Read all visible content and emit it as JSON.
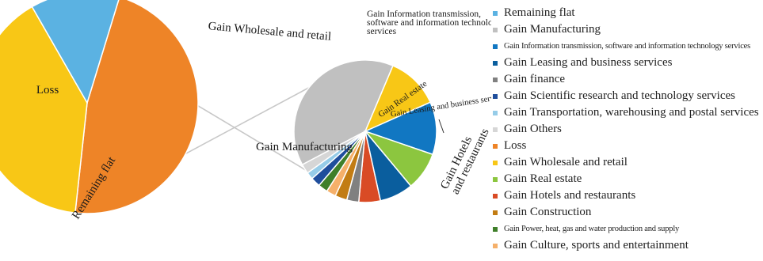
{
  "chart_data": {
    "type": "pie",
    "subtype": "pie-of-pie",
    "main_pie": {
      "slices": [
        {
          "key": "loss",
          "label": "Loss",
          "value": 47,
          "color": "#ee8427"
        },
        {
          "key": "wholesale",
          "label": "Gain  Wholesale and retail",
          "value": 40,
          "color": "#f8c716"
        },
        {
          "key": "remaining",
          "label": "Remaining flat",
          "value": 13,
          "color": "#5bb2e2"
        }
      ]
    },
    "secondary_pie": {
      "slices": [
        {
          "key": "manufacturing",
          "label": "Gain  Manufacturing",
          "value": 36.0,
          "color": "#c0c0c0"
        },
        {
          "key": "wholesale2",
          "label": "",
          "value": 11.0,
          "color": "#f8c716"
        },
        {
          "key": "infotech",
          "label": "Gain  Information transmission, software and information technology services",
          "value": 11.0,
          "color": "#1177c2"
        },
        {
          "key": "realestate",
          "label": "Gain  Real estate",
          "value": 8.0,
          "color": "#8cc63f"
        },
        {
          "key": "leasing",
          "label": "Gain  Leasing and business services",
          "value": 7.0,
          "color": "#0a5e9e"
        },
        {
          "key": "hotels",
          "label": "Gain  Hotels and restaurants",
          "value": 4.5,
          "color": "#d94b25"
        },
        {
          "key": "finance",
          "label": "",
          "value": 2.5,
          "color": "#808080"
        },
        {
          "key": "construction",
          "label": "",
          "value": 2.5,
          "color": "#c27c13"
        },
        {
          "key": "culture",
          "label": "",
          "value": 2.0,
          "color": "#f5b06a"
        },
        {
          "key": "power",
          "label": "",
          "value": 2.0,
          "color": "#3f7f2a"
        },
        {
          "key": "scientific",
          "label": "",
          "value": 2.0,
          "color": "#1f4e9c"
        },
        {
          "key": "transport",
          "label": "",
          "value": 1.5,
          "color": "#96cce8"
        },
        {
          "key": "others",
          "label": "",
          "value": 2.0,
          "color": "#d6d6d6"
        }
      ]
    },
    "legend_position": "right",
    "legend": [
      {
        "label": "Remaining flat",
        "color": "#5bb2e2",
        "small": false
      },
      {
        "label": "Gain  Manufacturing",
        "color": "#c0c0c0",
        "small": false
      },
      {
        "label": "Gain  Information transmission, software and information technology services",
        "color": "#1177c2",
        "small": true
      },
      {
        "label": "Gain  Leasing and business services",
        "color": "#0a5e9e",
        "small": false
      },
      {
        "label": "Gain  finance",
        "color": "#808080",
        "small": false
      },
      {
        "label": "Gain  Scientific research and technology services",
        "color": "#1f4e9c",
        "small": false
      },
      {
        "label": "Gain  Transportation, warehousing and postal services",
        "color": "#96cce8",
        "small": false
      },
      {
        "label": "Gain  Others",
        "color": "#d6d6d6",
        "small": false
      },
      {
        "label": "Loss",
        "color": "#ee8427",
        "small": false
      },
      {
        "label": "Gain  Wholesale and retail",
        "color": "#f8c716",
        "small": false
      },
      {
        "label": "Gain  Real estate",
        "color": "#8cc63f",
        "small": false
      },
      {
        "label": "Gain  Hotels and restaurants",
        "color": "#d94b25",
        "small": false
      },
      {
        "label": "Gain  Construction",
        "color": "#c27c13",
        "small": false
      },
      {
        "label": "Gain Power, heat, gas and water production and supply",
        "color": "#3f7f2a",
        "small": true
      },
      {
        "label": "Gain  Culture, sports and entertainment",
        "color": "#f5b06a",
        "small": false
      }
    ]
  }
}
